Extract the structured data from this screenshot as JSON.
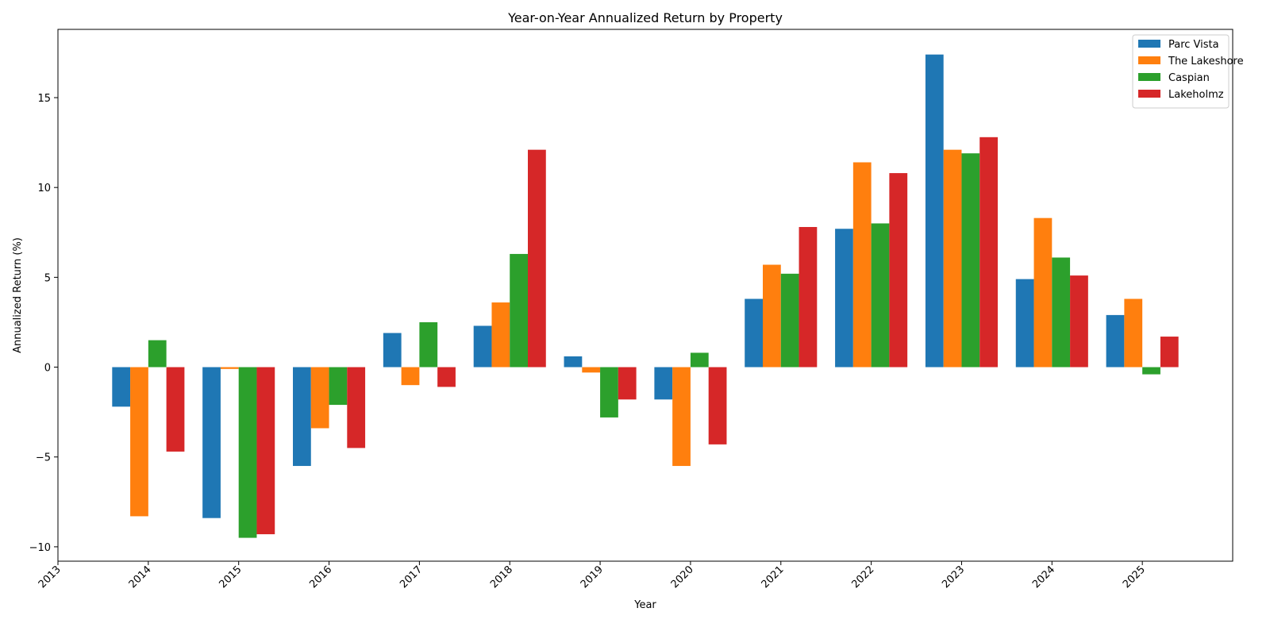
{
  "chart_data": {
    "type": "bar",
    "title": "Year-on-Year Annualized Return by Property",
    "xlabel": "Year",
    "ylabel": "Annualized Return (%)",
    "categories": [
      "2014",
      "2015",
      "2016",
      "2017",
      "2018",
      "2019",
      "2020",
      "2021",
      "2022",
      "2023",
      "2024",
      "2025"
    ],
    "x_tick_labels": [
      "2013",
      "2014",
      "2015",
      "2016",
      "2017",
      "2018",
      "2019",
      "2020",
      "2021",
      "2022",
      "2023",
      "2024",
      "2025"
    ],
    "xlim": [
      2013,
      2026
    ],
    "ylim": [
      -10.8,
      18.8
    ],
    "y_ticks": [
      -10,
      -5,
      0,
      5,
      10,
      15
    ],
    "y_tick_labels": [
      "−10",
      "−5",
      "0",
      "5",
      "10",
      "15"
    ],
    "grid": false,
    "legend_position": "top-right",
    "series": [
      {
        "name": "Parc Vista",
        "color": "#1f77b4",
        "values": [
          -2.2,
          -8.4,
          -5.5,
          1.9,
          2.3,
          0.6,
          -1.8,
          3.8,
          7.7,
          17.4,
          4.9,
          2.9
        ]
      },
      {
        "name": "The Lakeshore",
        "color": "#ff7f0e",
        "values": [
          -8.3,
          -0.1,
          -3.4,
          -1.0,
          3.6,
          -0.3,
          -5.5,
          5.7,
          11.4,
          12.1,
          8.3,
          3.8
        ]
      },
      {
        "name": "Caspian",
        "color": "#2ca02c",
        "values": [
          1.5,
          -9.5,
          -2.1,
          2.5,
          6.3,
          -2.8,
          0.8,
          5.2,
          8.0,
          11.9,
          6.1,
          -0.4
        ]
      },
      {
        "name": "Lakeholmz",
        "color": "#d62728",
        "values": [
          -4.7,
          -9.3,
          -4.5,
          -1.1,
          12.1,
          -1.8,
          -4.3,
          7.8,
          10.8,
          12.8,
          5.1,
          1.7
        ]
      }
    ]
  }
}
